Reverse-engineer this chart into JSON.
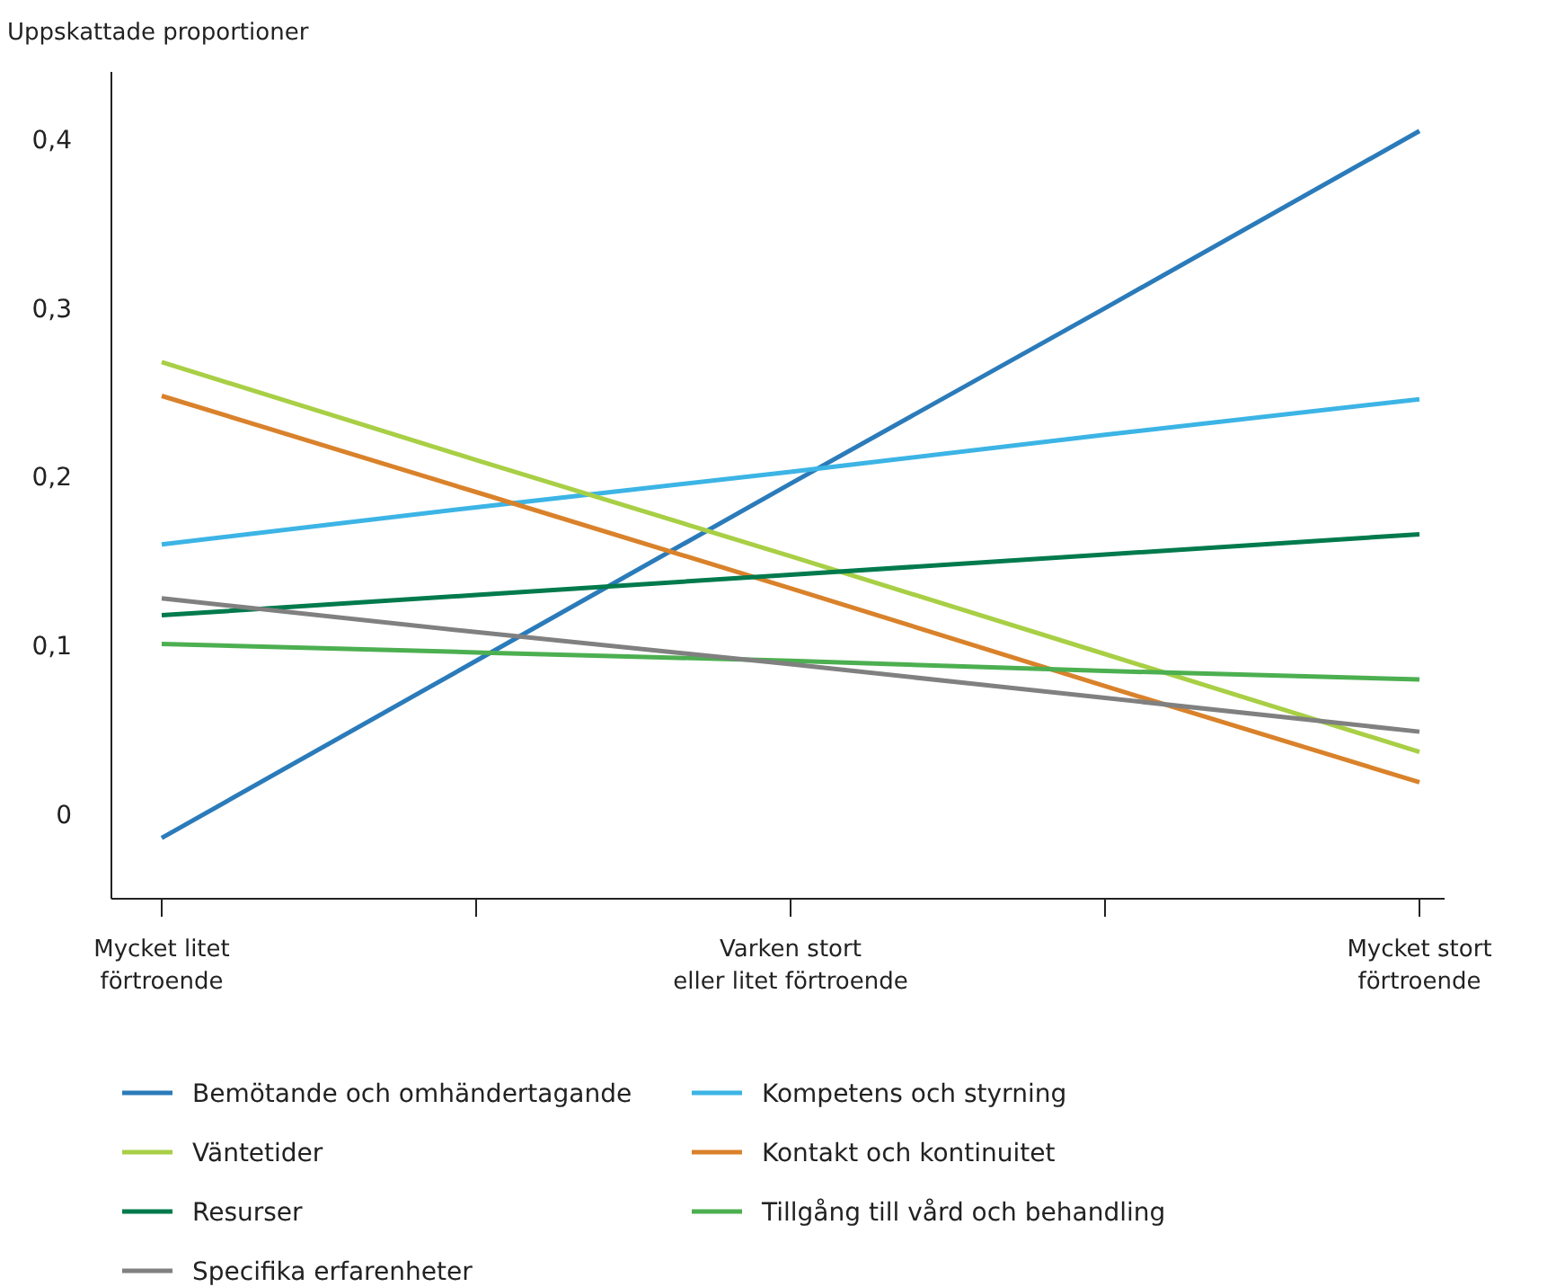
{
  "chart_data": {
    "type": "line",
    "ylabel": "Uppskattade proportioner",
    "categories": [
      "Mycket litet\nförtroende",
      null,
      "Varken stort\neller litet förtroende",
      null,
      "Mycket stort\nförtroende"
    ],
    "ylim": [
      -0.05,
      0.44
    ],
    "yticks": [
      {
        "value": 0,
        "label": "0"
      },
      {
        "value": 0.1,
        "label": "0,1"
      },
      {
        "value": 0.2,
        "label": "0,2"
      },
      {
        "value": 0.3,
        "label": "0,3"
      },
      {
        "value": 0.4,
        "label": "0,4"
      }
    ],
    "grid": false,
    "legend": "bottom",
    "marker": "none",
    "line_style": "solid",
    "series": [
      {
        "name": "Bemötande och omhändertagande",
        "color": "#2b7bba",
        "values": [
          -0.014,
          0.091,
          0.196,
          0.3,
          0.405
        ]
      },
      {
        "name": "Kompetens och styrning",
        "color": "#3cb4e5",
        "values": [
          0.16,
          0.182,
          0.203,
          0.225,
          0.246
        ]
      },
      {
        "name": "Väntetider",
        "color": "#a8cf45",
        "values": [
          0.268,
          0.21,
          0.153,
          0.095,
          0.037
        ]
      },
      {
        "name": "Kontakt och kontinuitet",
        "color": "#d9822b",
        "values": [
          0.248,
          0.191,
          0.134,
          0.076,
          0.019
        ]
      },
      {
        "name": "Resurser",
        "color": "#007a4d",
        "values": [
          0.118,
          0.13,
          0.142,
          0.154,
          0.166
        ]
      },
      {
        "name": "Tillgång till vård och behandling",
        "color": "#4caf50",
        "values": [
          0.101,
          0.096,
          0.091,
          0.085,
          0.08
        ]
      },
      {
        "name": "Specifika erfarenheter",
        "color": "#808080",
        "values": [
          0.128,
          0.108,
          0.089,
          0.069,
          0.049
        ]
      }
    ]
  }
}
